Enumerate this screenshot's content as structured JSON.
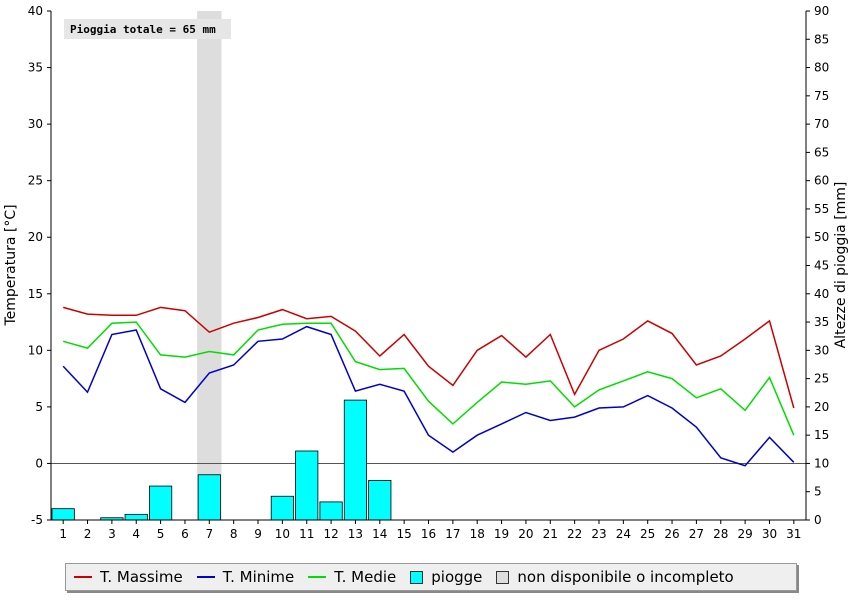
{
  "chart_data": {
    "type": "line",
    "categories": [
      "1",
      "2",
      "3",
      "4",
      "5",
      "6",
      "7",
      "8",
      "9",
      "10",
      "11",
      "12",
      "13",
      "14",
      "15",
      "16",
      "17",
      "18",
      "19",
      "20",
      "21",
      "22",
      "23",
      "24",
      "25",
      "26",
      "27",
      "28",
      "29",
      "30",
      "31"
    ],
    "annotation": "Pioggia totale = 65 mm",
    "ylabel": "Temperatura [°C]",
    "y2label": "Altezze di pioggia [mm]",
    "ylim": [
      -5,
      40
    ],
    "y2lim": [
      0,
      90
    ],
    "yticks": [
      -5,
      0,
      5,
      10,
      15,
      20,
      25,
      30,
      35,
      40
    ],
    "y2ticks": [
      0,
      5,
      10,
      15,
      20,
      25,
      30,
      35,
      40,
      45,
      50,
      55,
      60,
      65,
      70,
      75,
      80,
      85,
      90
    ],
    "unavailable_days": [
      "7"
    ],
    "series": [
      {
        "name": "T. Massime",
        "color": "#cc0000",
        "axis": "left",
        "values": [
          13.8,
          13.2,
          13.1,
          13.1,
          13.8,
          13.5,
          11.6,
          12.4,
          12.9,
          13.6,
          12.8,
          13.0,
          11.7,
          9.5,
          11.4,
          8.6,
          6.9,
          10.0,
          11.3,
          9.4,
          11.4,
          6.1,
          10.0,
          11.0,
          12.6,
          11.5,
          8.7,
          9.5,
          11.0,
          12.6,
          4.9
        ]
      },
      {
        "name": "T. Minime",
        "color": "#0000cc",
        "axis": "left",
        "values": [
          8.6,
          6.3,
          11.4,
          11.8,
          6.6,
          5.4,
          8.0,
          8.7,
          10.8,
          11.0,
          12.1,
          11.4,
          6.4,
          7.0,
          6.4,
          2.5,
          1.0,
          2.5,
          3.5,
          4.5,
          3.8,
          4.1,
          4.9,
          5.0,
          6.0,
          4.9,
          3.2,
          0.5,
          -0.2,
          2.3,
          0.1
        ]
      },
      {
        "name": "T. Medie",
        "color": "#00dd00",
        "axis": "left",
        "values": [
          10.8,
          10.2,
          12.4,
          12.5,
          9.6,
          9.4,
          9.9,
          9.6,
          11.8,
          12.3,
          12.4,
          12.4,
          9.0,
          8.3,
          8.4,
          5.5,
          3.5,
          5.4,
          7.2,
          7.0,
          7.3,
          5.0,
          6.5,
          7.3,
          8.1,
          7.5,
          5.8,
          6.6,
          4.7,
          7.6,
          2.5
        ]
      },
      {
        "name": "piogge",
        "color": "#00ffff",
        "axis": "right",
        "type": "bar",
        "values": [
          2.0,
          0,
          0.4,
          1.0,
          6.0,
          0,
          8.0,
          0,
          0,
          4.2,
          12.2,
          3.2,
          21.2,
          7.0,
          0,
          0,
          0,
          0,
          0,
          0,
          0,
          0,
          0,
          0,
          0,
          0,
          0,
          0,
          0,
          0,
          0
        ]
      }
    ]
  },
  "legend": {
    "max": "T. Massime",
    "min": "T. Minime",
    "mean": "T. Medie",
    "rain": "piogge",
    "na": "non disponibile o incompleto"
  },
  "colors": {
    "na": "#dddddd"
  }
}
